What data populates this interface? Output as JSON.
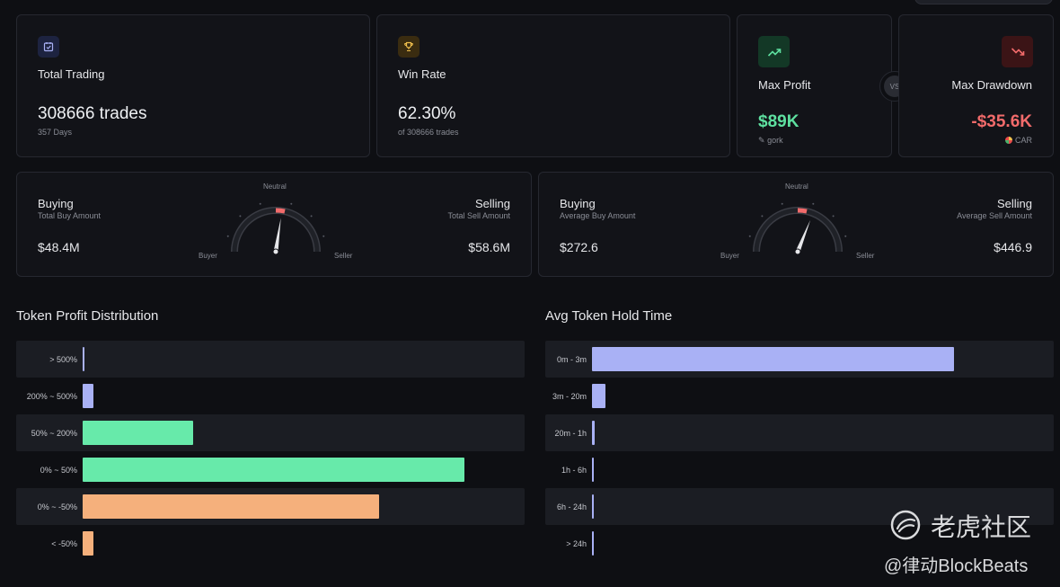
{
  "stats": {
    "total_trading": {
      "label": "Total Trading",
      "value": "308666 trades",
      "sub": "357 Days"
    },
    "win_rate": {
      "label": "Win Rate",
      "value": "62.30%",
      "sub": "of 308666 trades"
    },
    "max_profit": {
      "label": "Max Profit",
      "value": "$89K",
      "token": "gork",
      "color": "#5ee0a0"
    },
    "max_drawdown": {
      "label": "Max Drawdown",
      "value": "-$35.6K",
      "token": "CAR",
      "color": "#f26b6b"
    },
    "vs": "VS"
  },
  "gauges": [
    {
      "buy_label": "Buying",
      "buy_sub": "Total Buy Amount",
      "buy_value": "$48.4M",
      "sell_label": "Selling",
      "sell_sub": "Total Sell Amount",
      "sell_value": "$58.6M",
      "neutral": "Neutral",
      "buyer": "Buyer",
      "seller": "Seller",
      "buy_share": 0.452
    },
    {
      "buy_label": "Buying",
      "buy_sub": "Average Buy Amount",
      "buy_value": "$272.6",
      "sell_label": "Selling",
      "sell_sub": "Average Sell Amount",
      "sell_value": "$446.9",
      "neutral": "Neutral",
      "buyer": "Buyer",
      "seller": "Seller",
      "buy_share": 0.379
    }
  ],
  "chart_data": [
    {
      "type": "bar",
      "title": "Token Profit Distribution",
      "categories": [
        "> 500%",
        "200% ~ 500%",
        "50% ~ 200%",
        "0% ~ 50%",
        "0% ~ -50%",
        "< -50%"
      ],
      "values": [
        0.4,
        2.5,
        26,
        90,
        70,
        2.5
      ],
      "xlim": [
        0,
        100
      ],
      "colors": [
        "#a9b1f5",
        "#a9b1f5",
        "#67eaaa",
        "#67eaaa",
        "#f5b07c",
        "#f5b07c"
      ]
    },
    {
      "type": "bar",
      "title": "Avg Token Hold Time",
      "categories": [
        "0m - 3m",
        "3m - 20m",
        "20m - 1h",
        "1h - 6h",
        "6h - 24h",
        "> 24h"
      ],
      "values": [
        81.5,
        3,
        0.6,
        0.4,
        0.3,
        0.3
      ],
      "xlim": [
        0,
        100
      ],
      "colors": [
        "#a9b1f5",
        "#a9b1f5",
        "#a9b1f5",
        "#a9b1f5",
        "#a9b1f5",
        "#a9b1f5"
      ]
    }
  ],
  "watermark": {
    "cn": "老虎社区",
    "en": "@律动BlockBeats"
  }
}
